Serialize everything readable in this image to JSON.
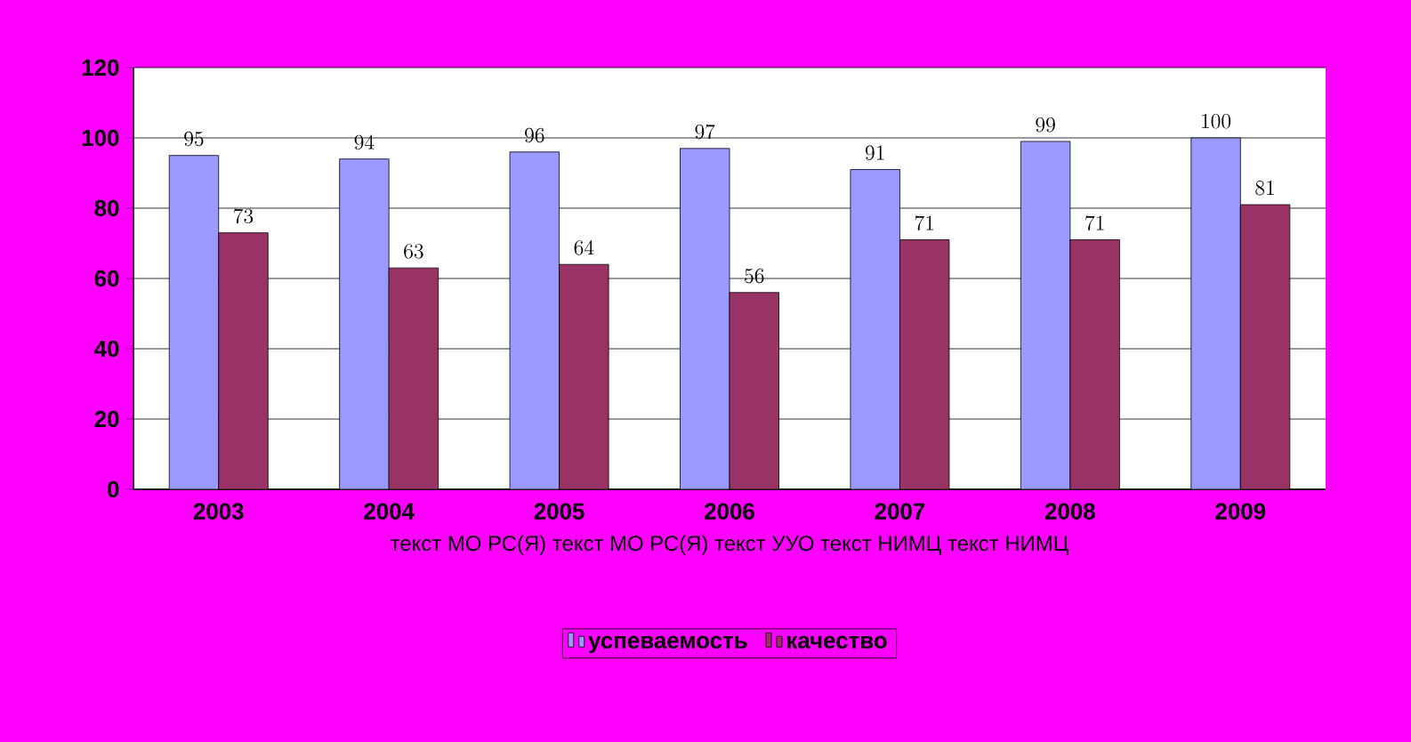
{
  "chart_data": {
    "type": "bar",
    "categories": [
      "2003",
      "2004",
      "2005",
      "2006",
      "2007",
      "2008",
      "2009"
    ],
    "xlabel": "текст МО РС(Я)     текст МО РС(Я)  текст УУО  текст НИМЦ  текст НИМЦ",
    "series": [
      {
        "name": "успеваемость",
        "color": "#9999ff",
        "values": [
          95,
          94,
          96,
          97,
          91,
          99,
          100
        ]
      },
      {
        "name": "качество",
        "color": "#993366",
        "values": [
          73,
          63,
          64,
          56,
          71,
          71,
          81
        ]
      }
    ],
    "ylim": [
      0,
      120
    ],
    "yticks": [
      0,
      20,
      40,
      60,
      80,
      100,
      120
    ],
    "grid": "y",
    "legend": "bottom",
    "data_labels": true
  }
}
